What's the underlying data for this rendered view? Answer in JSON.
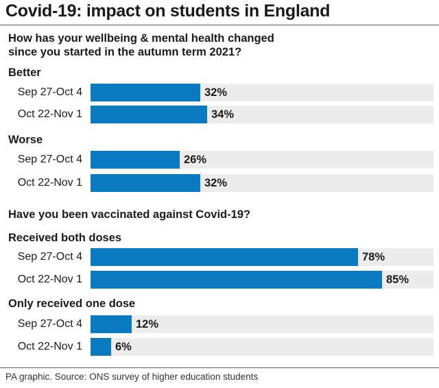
{
  "title": "Covid-19: impact on students in England",
  "source": "PA graphic. Source: ONS survey of higher education students",
  "colors": {
    "bar": "#0a7bc0",
    "track": "#ececec",
    "text": "#1a1a1a"
  },
  "chart_data": [
    {
      "type": "bar",
      "orientation": "horizontal",
      "title": "How has your wellbeing & mental health changed since you started in the autumn term 2021?",
      "title_lines": [
        "How has your wellbeing & mental health changed",
        "since you started in the autumn term 2021?"
      ],
      "unit": "%",
      "xlim": [
        0,
        100
      ],
      "groups": [
        {
          "name": "Better",
          "categories": [
            "Sep 27-Oct 4",
            "Oct 22-Nov 1"
          ],
          "values": [
            32,
            34
          ]
        },
        {
          "name": "Worse",
          "categories": [
            "Sep 27-Oct 4",
            "Oct 22-Nov 1"
          ],
          "values": [
            26,
            32
          ]
        }
      ]
    },
    {
      "type": "bar",
      "orientation": "horizontal",
      "title": "Have you been vaccinated against Covid-19?",
      "title_lines": [
        "Have you been vaccinated against Covid-19?"
      ],
      "unit": "%",
      "xlim": [
        0,
        100
      ],
      "groups": [
        {
          "name": "Received both doses",
          "categories": [
            "Sep 27-Oct 4",
            "Oct 22-Nov 1"
          ],
          "values": [
            78,
            85
          ]
        },
        {
          "name": "Only received one dose",
          "categories": [
            "Sep 27-Oct 4",
            "Oct 22-Nov 1"
          ],
          "values": [
            12,
            6
          ]
        }
      ]
    }
  ]
}
